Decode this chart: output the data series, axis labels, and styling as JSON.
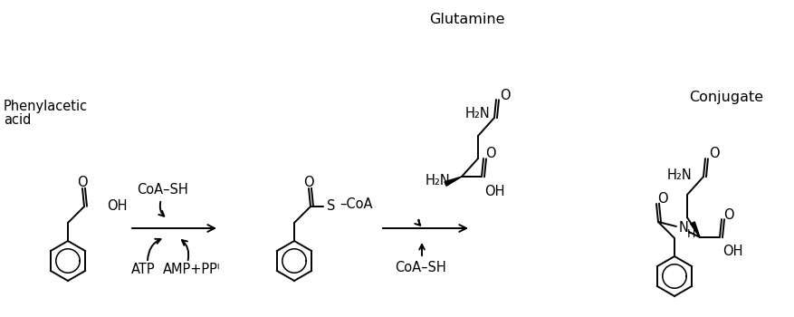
{
  "background": "#ffffff",
  "text_color": "#000000",
  "figsize": [
    8.78,
    3.5
  ],
  "dpi": 100,
  "lw": 1.4,
  "fs": 10.5,
  "labels": {
    "phenylacetic_acid_1": "Phenylacetic",
    "phenylacetic_acid_2": "acid",
    "glutamine": "Glutamine",
    "conjugate": "Conjugate",
    "coa_sh_top": "CoA–SH",
    "atp": "ATP",
    "amp_ppi": "AMP+PPᴵ",
    "coa_sh_bottom": "CoA–SH"
  }
}
